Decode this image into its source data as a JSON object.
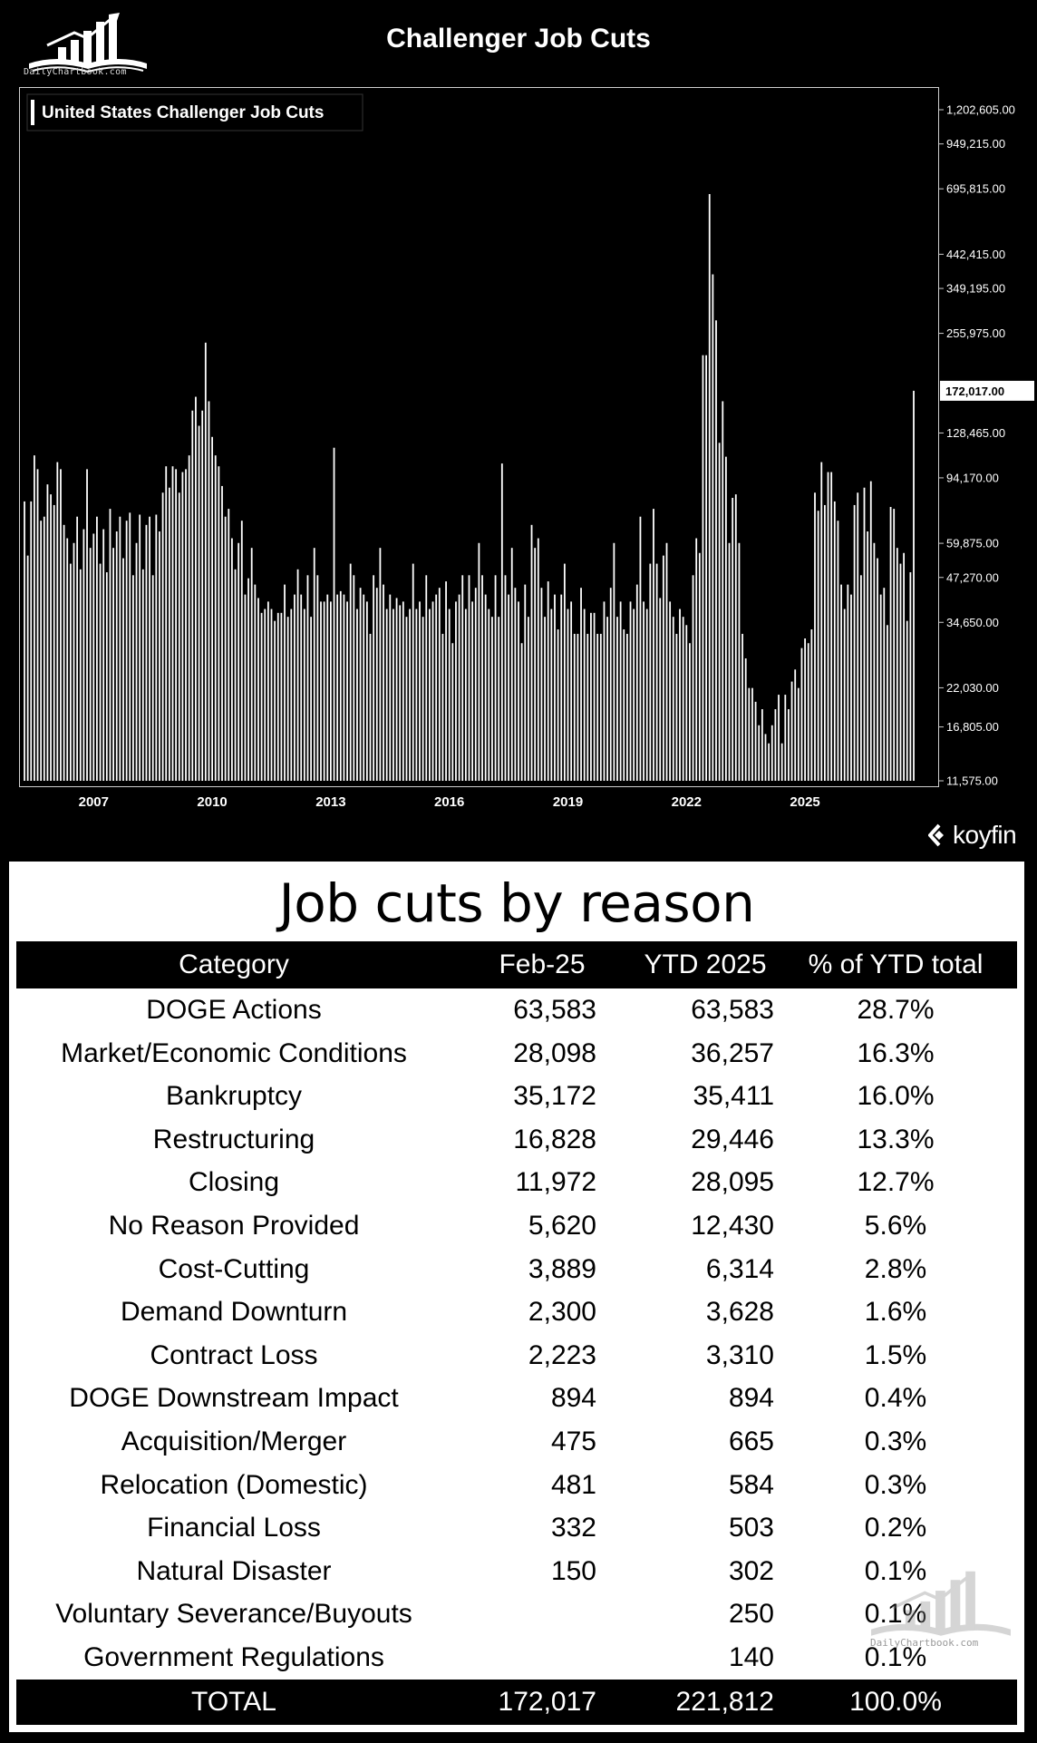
{
  "header": {
    "title": "Challenger Job Cuts",
    "logo_text": "DailyChartbook.com"
  },
  "chart_data": {
    "type": "bar",
    "title": "Challenger Job Cuts",
    "legend": "United States Challenger Job Cuts",
    "legend_position": "top-left",
    "y_scale": "log",
    "ylim": [
      11575,
      1202605
    ],
    "y_ticks": [
      "1,202,605.00",
      "949,215.00",
      "695,815.00",
      "442,415.00",
      "349,195.00",
      "255,975.00",
      "128,465.00",
      "94,170.00",
      "59,875.00",
      "47,270.00",
      "34,650.00",
      "22,030.00",
      "16,805.00",
      "11,575.00"
    ],
    "y_tick_values": [
      1202605,
      949215,
      695815,
      442415,
      349195,
      255975,
      128465,
      94170,
      59875,
      47270,
      34650,
      22030,
      16805,
      11575
    ],
    "x_ticks": [
      "2007",
      "2010",
      "2013",
      "2016",
      "2019",
      "2022",
      "2025"
    ],
    "x_tick_years": [
      2007,
      2010,
      2013,
      2016,
      2019,
      2022,
      2025
    ],
    "x_range": [
      "2005-04",
      "2025-02"
    ],
    "last_value_label": "172,017.00",
    "last_value": 172017,
    "grid": false,
    "values": [
      80000,
      55000,
      80000,
      110000,
      100000,
      70000,
      72000,
      90000,
      84000,
      78000,
      105000,
      100000,
      68000,
      62000,
      52000,
      60000,
      72000,
      50000,
      66000,
      100000,
      58000,
      64000,
      72000,
      52000,
      66000,
      49000,
      76000,
      58000,
      65000,
      72000,
      54000,
      70000,
      74000,
      48000,
      60000,
      73000,
      50000,
      68000,
      72000,
      48000,
      73000,
      65000,
      85000,
      102000,
      88000,
      102000,
      100000,
      85000,
      98000,
      100000,
      110000,
      150000,
      165000,
      135000,
      150000,
      240000,
      160000,
      125000,
      110000,
      102000,
      89000,
      72000,
      76000,
      62000,
      50000,
      60000,
      70000,
      42000,
      47000,
      58000,
      45000,
      41000,
      37000,
      38000,
      40000,
      38000,
      35000,
      37000,
      37000,
      45000,
      36000,
      38000,
      42000,
      50000,
      42000,
      38000,
      48000,
      36000,
      58000,
      48000,
      40000,
      40000,
      42000,
      40000,
      116000,
      42000,
      43000,
      42000,
      40000,
      52000,
      48000,
      38000,
      44000,
      42000,
      40000,
      32000,
      48000,
      44000,
      58000,
      45000,
      38000,
      42000,
      38000,
      41000,
      39000,
      40000,
      36000,
      38000,
      52000,
      38000,
      40000,
      36000,
      48000,
      38000,
      40000,
      42000,
      44000,
      32000,
      46000,
      38000,
      30000,
      40000,
      42000,
      48000,
      38000,
      48000,
      40000,
      44000,
      60000,
      48000,
      42000,
      38000,
      36000,
      48000,
      36000,
      104000,
      48000,
      42000,
      58000,
      44000,
      40000,
      30000,
      45000,
      36000,
      68000,
      58000,
      62000,
      44000,
      36000,
      46000,
      38000,
      42000,
      33000,
      42000,
      52000,
      38000,
      40000,
      32000,
      32000,
      44000,
      38000,
      32000,
      37000,
      37000,
      32000,
      32000,
      40000,
      36000,
      44000,
      60000,
      36000,
      40000,
      33000,
      32000,
      40000,
      38000,
      45000,
      72000,
      40000,
      38000,
      52000,
      76000,
      52000,
      41000,
      55000,
      60000,
      40000,
      36000,
      32000,
      38000,
      36000,
      34000,
      30000,
      48000,
      62000,
      56000,
      220000,
      220000,
      671000,
      385000,
      280000,
      120000,
      160000,
      109000,
      60000,
      82000,
      84000,
      60000,
      32000,
      27000,
      22000,
      22000,
      20000,
      17000,
      19000,
      16000,
      15000,
      17000,
      19000,
      21000,
      15000,
      21000,
      19000,
      23000,
      25000,
      22000,
      29000,
      31000,
      30000,
      33000,
      85000,
      75000,
      105000,
      78000,
      98000,
      98000,
      80000,
      70000,
      45000,
      38000,
      45000,
      42000,
      78000,
      85000,
      48000,
      88000,
      65000,
      92000,
      60000,
      54000,
      42000,
      44000,
      34000,
      77000,
      76000,
      58000,
      52000,
      56000,
      35000,
      49000,
      172017
    ]
  },
  "koyfin": "koyfin",
  "table": {
    "title": "Job cuts by reason",
    "headers": [
      "Category",
      "Feb-25",
      "YTD 2025",
      "% of YTD total"
    ],
    "rows": [
      [
        "DOGE Actions",
        "63,583",
        "63,583",
        "28.7%"
      ],
      [
        "Market/Economic Conditions",
        "28,098",
        "36,257",
        "16.3%"
      ],
      [
        "Bankruptcy",
        "35,172",
        "35,411",
        "16.0%"
      ],
      [
        "Restructuring",
        "16,828",
        "29,446",
        "13.3%"
      ],
      [
        "Closing",
        "11,972",
        "28,095",
        "12.7%"
      ],
      [
        "No Reason Provided",
        "5,620",
        "12,430",
        "5.6%"
      ],
      [
        "Cost-Cutting",
        "3,889",
        "6,314",
        "2.8%"
      ],
      [
        "Demand Downturn",
        "2,300",
        "3,628",
        "1.6%"
      ],
      [
        "Contract Loss",
        "2,223",
        "3,310",
        "1.5%"
      ],
      [
        "DOGE Downstream Impact",
        "894",
        "894",
        "0.4%"
      ],
      [
        "Acquisition/Merger",
        "475",
        "665",
        "0.3%"
      ],
      [
        "Relocation (Domestic)",
        "481",
        "584",
        "0.3%"
      ],
      [
        "Financial Loss",
        "332",
        "503",
        "0.2%"
      ],
      [
        "Natural Disaster",
        "150",
        "302",
        "0.1%"
      ],
      [
        "Voluntary Severance/Buyouts",
        "",
        "250",
        "0.1%"
      ],
      [
        "Government Regulations",
        "",
        "140",
        "0.1%"
      ]
    ],
    "total": [
      "TOTAL",
      "172,017",
      "221,812",
      "100.0%"
    ]
  },
  "watermark_text": "DailyChartbook.com"
}
